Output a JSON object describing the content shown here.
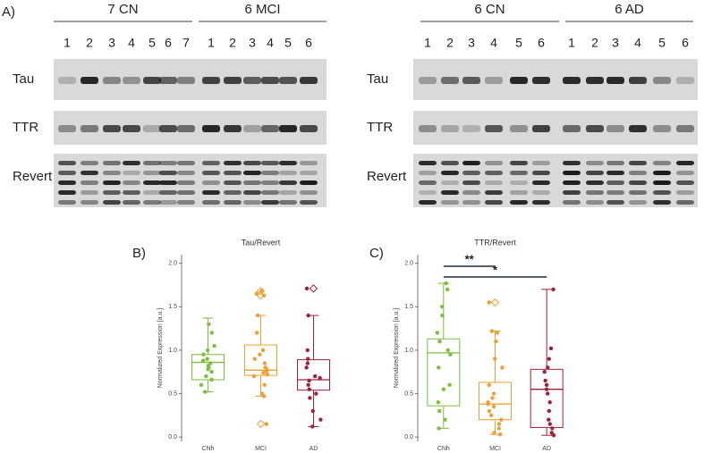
{
  "panel_labels": [
    "A)",
    "B)",
    "C)"
  ],
  "blots": [
    {
      "groups": [
        {
          "label": "7 CN",
          "lanes": [
            "1",
            "2",
            "3",
            "4",
            "5",
            "6",
            "7"
          ]
        },
        {
          "label": "6 MCI",
          "lanes": [
            "1",
            "2",
            "3",
            "4",
            "5",
            "6"
          ]
        }
      ],
      "rows": [
        "Tau",
        "TTR",
        "Revert"
      ]
    },
    {
      "groups": [
        {
          "label": "6 CN",
          "lanes": [
            "1",
            "2",
            "3",
            "4",
            "5",
            "6"
          ]
        },
        {
          "label": "6 AD",
          "lanes": [
            "1",
            "2",
            "3",
            "4",
            "5",
            "6"
          ]
        }
      ],
      "rows": [
        "Tau",
        "TTR",
        "Revert"
      ]
    }
  ],
  "chart_data": [
    {
      "type": "box",
      "title": "Tau/Revert",
      "ylabel": "Normalized Expression [a.u.]",
      "categories": [
        "CNh",
        "MCI",
        "AD"
      ],
      "ylim": [
        -0.05,
        2.1
      ],
      "yticks": [
        {
          "value": 0,
          "label": "0.0"
        },
        {
          "value": 0.5,
          "label": "0.5"
        },
        {
          "value": 1,
          "label": "1.0"
        },
        {
          "value": 1.5,
          "label": "1.5"
        },
        {
          "value": 2,
          "label": "2.0"
        }
      ],
      "series": [
        {
          "name": "CNh",
          "color": "#7cbf3a",
          "whislo": 0.52,
          "q1": 0.66,
          "med": 0.86,
          "q3": 0.95,
          "whishi": 1.37,
          "outliers": [],
          "points": [
            1.3,
            1.2,
            1.05,
            1.0,
            0.95,
            0.9,
            0.88,
            0.85,
            0.82,
            0.8,
            0.78,
            0.75,
            0.7,
            0.66,
            0.6,
            0.52
          ]
        },
        {
          "name": "MCI",
          "color": "#f0a030",
          "whislo": 0.47,
          "q1": 0.71,
          "med": 0.77,
          "q3": 1.06,
          "whishi": 1.4,
          "outliers": [
            0.15,
            1.63,
            1.68
          ],
          "points": [
            1.68,
            1.65,
            1.63,
            1.4,
            1.2,
            1.0,
            0.95,
            0.9,
            0.85,
            0.8,
            0.78,
            0.76,
            0.74,
            0.72,
            0.7,
            0.6,
            0.5,
            0.47,
            0.15
          ]
        },
        {
          "name": "AD",
          "color": "#a0203a",
          "whislo": 0.12,
          "q1": 0.54,
          "med": 0.66,
          "q3": 0.89,
          "whishi": 1.4,
          "outliers": [
            1.71
          ],
          "points": [
            1.71,
            1.4,
            1.0,
            0.9,
            0.85,
            0.8,
            0.7,
            0.68,
            0.65,
            0.6,
            0.55,
            0.5,
            0.45,
            0.3,
            0.2,
            0.12
          ]
        }
      ]
    },
    {
      "type": "box",
      "title": "TTR/Revert",
      "ylabel": "Normalized Expression [a.u.]",
      "categories": [
        "CNh",
        "MCI",
        "AD"
      ],
      "ylim": [
        -0.05,
        2.1
      ],
      "yticks": [
        {
          "value": 0,
          "label": "0.0"
        },
        {
          "value": 0.5,
          "label": "0.5"
        },
        {
          "value": 1,
          "label": "1.0"
        },
        {
          "value": 1.5,
          "label": "1.5"
        },
        {
          "value": 2,
          "label": "2.0"
        }
      ],
      "series": [
        {
          "name": "CNh",
          "color": "#7cbf3a",
          "whislo": 0.1,
          "q1": 0.36,
          "med": 0.97,
          "q3": 1.13,
          "whishi": 1.77,
          "outliers": [],
          "points": [
            1.77,
            1.7,
            1.5,
            1.4,
            1.2,
            1.1,
            1.0,
            0.95,
            0.8,
            0.6,
            0.55,
            0.4,
            0.3,
            0.2,
            0.1
          ]
        },
        {
          "name": "MCI",
          "color": "#f0a030",
          "whislo": 0.03,
          "q1": 0.2,
          "med": 0.38,
          "q3": 0.63,
          "whishi": 1.22,
          "outliers": [
            1.55
          ],
          "points": [
            1.55,
            1.22,
            1.2,
            1.1,
            0.9,
            0.8,
            0.6,
            0.5,
            0.45,
            0.4,
            0.38,
            0.35,
            0.3,
            0.25,
            0.2,
            0.15,
            0.1,
            0.05,
            0.03
          ]
        },
        {
          "name": "AD",
          "color": "#a0203a",
          "whislo": 0.02,
          "q1": 0.11,
          "med": 0.55,
          "q3": 0.78,
          "whishi": 1.7,
          "outliers": [],
          "points": [
            1.7,
            1.02,
            0.9,
            0.8,
            0.75,
            0.65,
            0.6,
            0.55,
            0.5,
            0.4,
            0.3,
            0.2,
            0.15,
            0.1,
            0.05,
            0.02
          ]
        }
      ],
      "significance": [
        {
          "text": "**",
          "groups": [
            "CNh",
            "MCI"
          ]
        },
        {
          "text": "*",
          "groups": [
            "CNh",
            "AD"
          ]
        }
      ]
    }
  ]
}
